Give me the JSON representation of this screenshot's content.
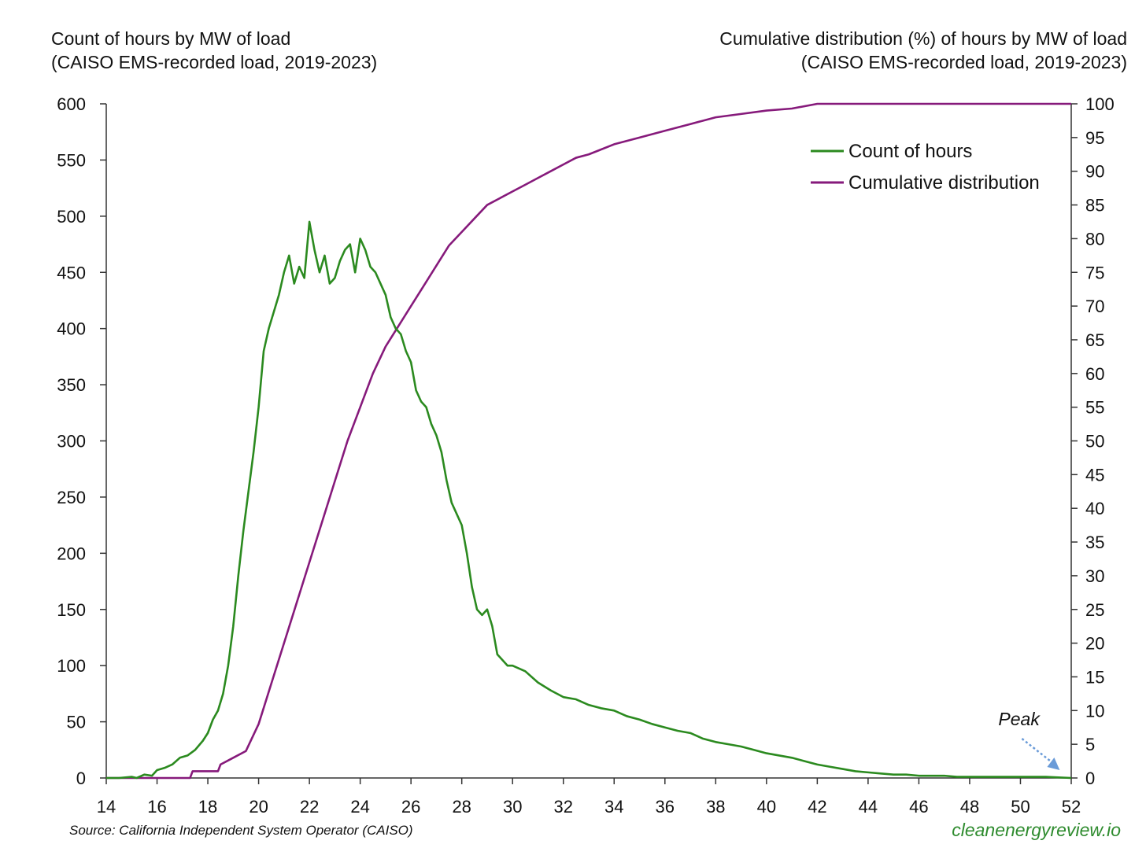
{
  "titles": {
    "left": {
      "line1": "Count of hours by MW of load",
      "line2": "(CAISO EMS-recorded load, 2019-2023)"
    },
    "right": {
      "line1": "Cumulative distribution (%) of hours by MW of load",
      "line2": "(CAISO EMS-recorded load, 2019-2023)"
    }
  },
  "footer": {
    "source": "Source: California Independent System Operator (CAISO)",
    "brand": "cleanenergyreview.io"
  },
  "chart_data": {
    "type": "line",
    "x_range": [
      14,
      52
    ],
    "x_ticks": [
      14,
      16,
      18,
      20,
      22,
      24,
      26,
      28,
      30,
      32,
      34,
      36,
      38,
      40,
      42,
      44,
      46,
      48,
      50,
      52
    ],
    "y_left": {
      "range": [
        0,
        600
      ],
      "ticks": [
        0,
        50,
        100,
        150,
        200,
        250,
        300,
        350,
        400,
        450,
        500,
        550,
        600
      ]
    },
    "y_right": {
      "range": [
        0,
        100
      ],
      "ticks": [
        0,
        5,
        10,
        15,
        20,
        25,
        30,
        35,
        40,
        45,
        50,
        55,
        60,
        65,
        70,
        75,
        80,
        85,
        90,
        95,
        100
      ]
    },
    "legend": {
      "position": "top-right",
      "entries": [
        "Count of hours",
        "Cumulative distribution"
      ]
    },
    "annotation": {
      "text": "Peak",
      "x": 51.3,
      "y": 0
    },
    "colors": {
      "count": "#2b8a1f",
      "cumulative": "#861a7b",
      "annotation_arrow": "#6a9bd8",
      "axis": "#333333"
    },
    "series": [
      {
        "name": "Count of hours",
        "axis": "left",
        "x": [
          14.0,
          14.5,
          15.0,
          15.2,
          15.5,
          15.8,
          16.0,
          16.3,
          16.6,
          16.9,
          17.2,
          17.5,
          17.8,
          18.0,
          18.2,
          18.4,
          18.6,
          18.8,
          19.0,
          19.2,
          19.4,
          19.6,
          19.8,
          20.0,
          20.2,
          20.4,
          20.6,
          20.8,
          21.0,
          21.2,
          21.4,
          21.6,
          21.8,
          22.0,
          22.2,
          22.4,
          22.6,
          22.8,
          23.0,
          23.2,
          23.4,
          23.6,
          23.8,
          24.0,
          24.2,
          24.4,
          24.6,
          24.8,
          25.0,
          25.2,
          25.4,
          25.6,
          25.8,
          26.0,
          26.2,
          26.4,
          26.6,
          26.8,
          27.0,
          27.2,
          27.4,
          27.6,
          27.8,
          28.0,
          28.2,
          28.4,
          28.6,
          28.8,
          29.0,
          29.2,
          29.4,
          29.6,
          29.8,
          30.0,
          30.5,
          31.0,
          31.5,
          32.0,
          32.5,
          33.0,
          33.5,
          34.0,
          34.5,
          35.0,
          35.5,
          36.0,
          36.5,
          37.0,
          37.5,
          38.0,
          38.5,
          39.0,
          39.5,
          40.0,
          40.5,
          41.0,
          41.5,
          42.0,
          42.5,
          43.0,
          43.5,
          44.0,
          44.5,
          45.0,
          45.5,
          46.0,
          46.5,
          47.0,
          47.5,
          48.0,
          49.0,
          50.0,
          51.0,
          52.0
        ],
        "values": [
          0,
          0,
          1,
          0,
          3,
          2,
          7,
          9,
          12,
          18,
          20,
          25,
          33,
          40,
          52,
          60,
          75,
          100,
          135,
          180,
          220,
          255,
          290,
          330,
          380,
          400,
          415,
          430,
          450,
          465,
          440,
          455,
          445,
          495,
          470,
          450,
          465,
          440,
          445,
          460,
          470,
          475,
          450,
          480,
          470,
          455,
          450,
          440,
          430,
          410,
          400,
          395,
          380,
          370,
          345,
          335,
          330,
          315,
          305,
          290,
          265,
          245,
          235,
          225,
          200,
          170,
          150,
          145,
          150,
          135,
          110,
          105,
          100,
          100,
          95,
          85,
          78,
          72,
          70,
          65,
          62,
          60,
          55,
          52,
          48,
          45,
          42,
          40,
          35,
          32,
          30,
          28,
          25,
          22,
          20,
          18,
          15,
          12,
          10,
          8,
          6,
          5,
          4,
          3,
          3,
          2,
          2,
          2,
          1,
          1,
          1,
          1,
          1,
          0
        ]
      },
      {
        "name": "Cumulative distribution",
        "axis": "right",
        "x": [
          14,
          17.3,
          17.4,
          18.4,
          18.5,
          19.0,
          19.5,
          20.0,
          20.5,
          21.0,
          21.5,
          22.0,
          22.5,
          23.0,
          23.5,
          24.0,
          24.5,
          25.0,
          25.5,
          26.0,
          26.5,
          27.0,
          27.5,
          28.0,
          28.5,
          29.0,
          29.5,
          30.0,
          30.5,
          31.0,
          31.5,
          32.0,
          32.5,
          33.0,
          34.0,
          35.0,
          36.0,
          37.0,
          38.0,
          39.0,
          40.0,
          41.0,
          42.0,
          52.0
        ],
        "values": [
          0,
          0,
          1,
          1,
          2,
          3,
          4,
          8,
          14,
          20,
          26,
          32,
          38,
          44,
          50,
          55,
          60,
          64,
          67,
          70,
          73,
          76,
          79,
          81,
          83,
          85,
          86,
          87,
          88,
          89,
          90,
          91,
          92,
          92.5,
          94,
          95,
          96,
          97,
          98,
          98.5,
          99,
          99.3,
          100,
          100
        ]
      }
    ]
  }
}
